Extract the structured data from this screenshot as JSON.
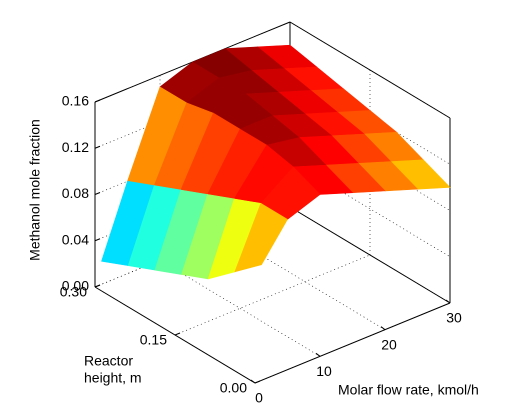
{
  "chart_data": {
    "type": "surface",
    "xlabel": "Molar flow rate, kmol/h",
    "ylabel": [
      "Reactor",
      "height, m"
    ],
    "zlabel": "Methanol mole fraction",
    "colormap": "jet",
    "grid": true,
    "x": [
      1,
      5,
      10,
      15,
      20,
      25,
      30
    ],
    "y": [
      0,
      0.05,
      0.1,
      0.15,
      0.2,
      0.25,
      0.3
    ],
    "z": [
      [
        0.1,
        0.13,
        0.14,
        0.13,
        0.12,
        0.11,
        0.1
      ],
      [
        0.08,
        0.13,
        0.15,
        0.14,
        0.13,
        0.12,
        0.11
      ],
      [
        0.06,
        0.12,
        0.155,
        0.15,
        0.14,
        0.13,
        0.12
      ],
      [
        0.05,
        0.11,
        0.155,
        0.155,
        0.145,
        0.135,
        0.125
      ],
      [
        0.04,
        0.1,
        0.155,
        0.16,
        0.15,
        0.14,
        0.13
      ],
      [
        0.03,
        0.09,
        0.15,
        0.16,
        0.155,
        0.145,
        0.135
      ],
      [
        0.02,
        0.08,
        0.15,
        0.16,
        0.16,
        0.15,
        0.14
      ]
    ],
    "xlim": [
      0,
      30
    ],
    "xticks": [
      0,
      10,
      20,
      30
    ],
    "ylim": [
      0,
      0.3
    ],
    "yticks": [
      {
        "value": 0,
        "label": "0.00"
      },
      {
        "value": 0.15,
        "label": "0.15"
      },
      {
        "value": 0.3,
        "label": "0.30"
      }
    ],
    "zlim": [
      0,
      0.16
    ],
    "zticks": [
      {
        "value": 0,
        "label": "0.00"
      },
      {
        "value": 0.04,
        "label": "0.04"
      },
      {
        "value": 0.08,
        "label": "0.08"
      },
      {
        "value": 0.12,
        "label": "0.12"
      },
      {
        "value": 0.16,
        "label": "0.16"
      }
    ]
  }
}
